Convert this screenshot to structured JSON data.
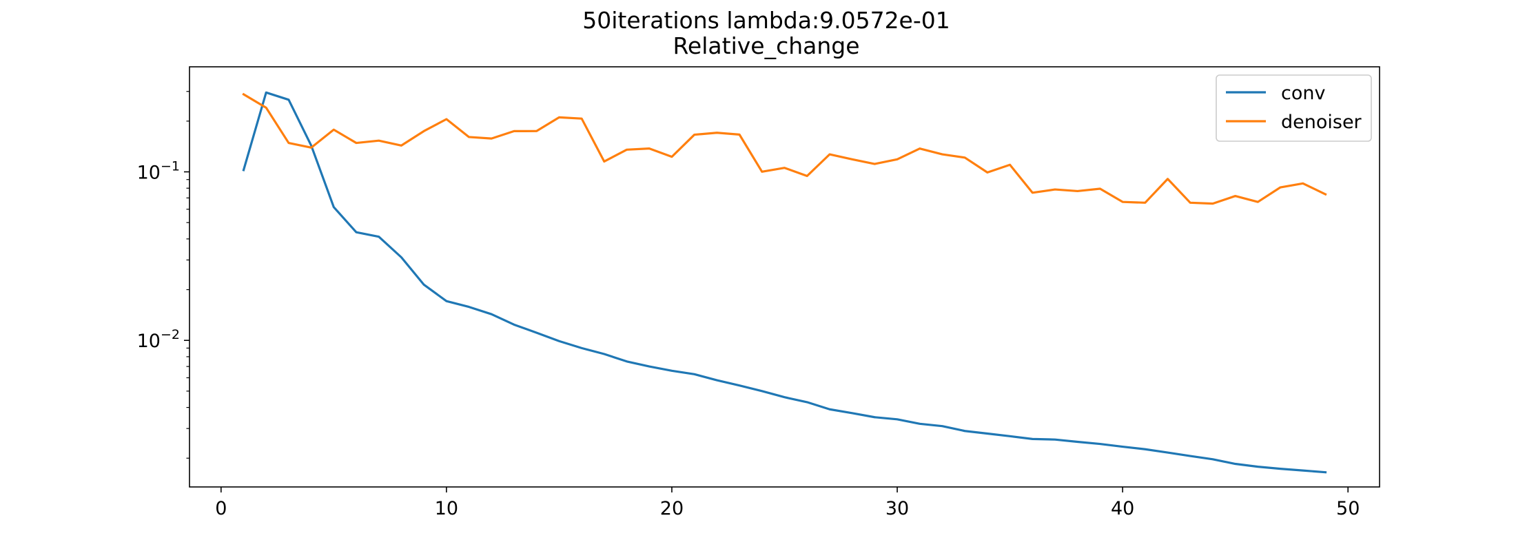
{
  "chart_data": {
    "type": "line",
    "title": "50iterations lambda:9.0572e-01",
    "subtitle": "Relative_change",
    "xlabel": "",
    "ylabel": "",
    "xlim": [
      -1.4,
      51.4
    ],
    "ylim": [
      0.00135,
      0.42
    ],
    "yscale": "log",
    "grid": false,
    "legend_position": "upper right",
    "x_ticks": [
      {
        "value": 0,
        "label": "0"
      },
      {
        "value": 10,
        "label": "10"
      },
      {
        "value": 20,
        "label": "20"
      },
      {
        "value": 30,
        "label": "30"
      },
      {
        "value": 40,
        "label": "40"
      },
      {
        "value": 50,
        "label": "50"
      }
    ],
    "y_major_ticks": [
      {
        "value": 0.01,
        "base": "10",
        "exponent": "−2"
      },
      {
        "value": 0.1,
        "base": "10",
        "exponent": "−1"
      }
    ],
    "y_minor_ticks": [
      0.002,
      0.003,
      0.004,
      0.005,
      0.006,
      0.007,
      0.008,
      0.009,
      0.02,
      0.03,
      0.04,
      0.05,
      0.06,
      0.07,
      0.08,
      0.09,
      0.2,
      0.3
    ],
    "x": [
      1,
      2,
      3,
      4,
      5,
      6,
      7,
      8,
      9,
      10,
      11,
      12,
      13,
      14,
      15,
      16,
      17,
      18,
      19,
      20,
      21,
      22,
      23,
      24,
      25,
      26,
      27,
      28,
      29,
      30,
      31,
      32,
      33,
      34,
      35,
      36,
      37,
      38,
      39,
      40,
      41,
      42,
      43,
      44,
      45,
      46,
      47,
      48,
      49
    ],
    "series": [
      {
        "name": "conv",
        "color": "#1f77b4",
        "values": [
          0.1025,
          0.2956,
          0.2678,
          0.1433,
          0.0618,
          0.0438,
          0.0412,
          0.0311,
          0.0214,
          0.0171,
          0.0158,
          0.0143,
          0.0124,
          0.0111,
          0.0099,
          0.009,
          0.0083,
          0.0075,
          0.007,
          0.0066,
          0.0063,
          0.0058,
          0.0054,
          0.005,
          0.0046,
          0.0043,
          0.0039,
          0.0037,
          0.0035,
          0.0034,
          0.0032,
          0.0031,
          0.0029,
          0.0028,
          0.0027,
          0.0026,
          0.00258,
          0.0025,
          0.00243,
          0.00234,
          0.00226,
          0.00216,
          0.00206,
          0.00197,
          0.00185,
          0.00178,
          0.00173,
          0.00169,
          0.00165
        ]
      },
      {
        "name": "denoiser",
        "color": "#ff7f0e",
        "values": [
          0.2885,
          0.2403,
          0.1484,
          0.1392,
          0.1779,
          0.1484,
          0.1532,
          0.1433,
          0.1745,
          0.2054,
          0.1609,
          0.1577,
          0.1744,
          0.1746,
          0.2106,
          0.207,
          0.1152,
          0.1354,
          0.1375,
          0.1229,
          0.1661,
          0.1706,
          0.1664,
          0.1002,
          0.1056,
          0.0945,
          0.127,
          0.1187,
          0.1114,
          0.1187,
          0.1375,
          0.127,
          0.1215,
          0.0992,
          0.1101,
          0.0752,
          0.0786,
          0.0769,
          0.0794,
          0.0663,
          0.0656,
          0.0908,
          0.0656,
          0.0648,
          0.0719,
          0.0663,
          0.0809,
          0.0854,
          0.0736
        ]
      }
    ]
  }
}
